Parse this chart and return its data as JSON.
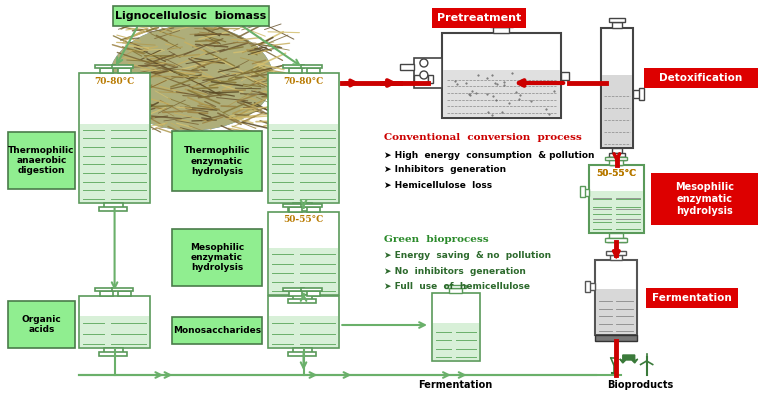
{
  "bg_color": "#ffffff",
  "green_box_color": "#90EE90",
  "green_box_edge": "#4a7c4a",
  "red_box_color": "#dd0000",
  "red_arrow_color": "#cc0000",
  "green_arrow_color": "#6ab06a",
  "tank_edge_color": "#5a9a5a",
  "dark_green_text": "#2d6a2d",
  "red_text_color": "#cc0000",
  "orange_text": "#b87a00",
  "label_lignocellulosic": "Lignocellulosic  biomass",
  "label_pretreatment": "Pretreatment",
  "label_detoxification": "Detoxification",
  "label_thermophilic_enzymatic": "Thermophilic\nenzymatic\nhydrolysis",
  "label_mesophilic_enzymatic_left": "Mesophilic\nenzymatic\nhydrolysis",
  "label_mesophilic_enzymatic_right": "Mesophilic\nenzymatic\nhydrolysis",
  "label_thermophilic_anaerobic": "Thermophilic\nanaerobic\ndigestion",
  "label_organic_acids": "Organic\nacids",
  "label_monosaccharides": "Monosaccharides",
  "label_fermentation_bottom": "Fermentation",
  "label_fermentation_right": "Fermentation",
  "label_bioproducts": "Bioproducts",
  "temp_70_80": "70-80°C",
  "temp_50_55": "50-55°C",
  "conventional_title": "Conventional  conversion  process",
  "conventional_items": [
    "High  energy  consumption  & pollution",
    "Inhibitors  generation",
    "Hemicellulose  loss"
  ],
  "green_title": "Green  bioprocess",
  "green_items": [
    "Energy  saving  & no  pollution",
    "No  inhibitors  generation",
    "Full  use  of  hemicellulose"
  ]
}
